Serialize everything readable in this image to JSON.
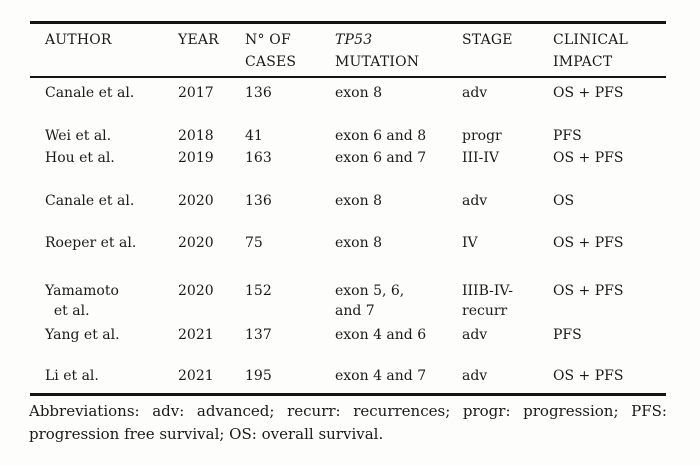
{
  "page": {
    "background_color": "#fdfdfc",
    "text_color": "#1a1a1a",
    "rule_color": "#141414"
  },
  "table": {
    "header": {
      "author": {
        "line1": "AUTHOR",
        "line2": ""
      },
      "year": {
        "line1": "YEAR",
        "line2": ""
      },
      "cases": {
        "line1": "N° OF",
        "line2": "CASES"
      },
      "mutation": {
        "line1": "TP53",
        "line2": "MUTATION"
      },
      "stage": {
        "line1": "STAGE",
        "line2": ""
      },
      "impact": {
        "line1": "CLINICAL",
        "line2": "IMPACT"
      }
    },
    "rows": [
      {
        "author": "Canale et al.",
        "year": "2017",
        "cases": "136",
        "mutation": "exon 8",
        "stage": "adv",
        "impact": "OS + PFS"
      },
      {
        "author": "Wei et al.",
        "year": "2018",
        "cases": "41",
        "mutation": "exon 6 and 8",
        "stage": "progr",
        "impact": "PFS"
      },
      {
        "author": "Hou et al.",
        "year": "2019",
        "cases": "163",
        "mutation": "exon 6 and 7",
        "stage": "III-IV",
        "impact": "OS + PFS"
      },
      {
        "author": "Canale et al.",
        "year": "2020",
        "cases": "136",
        "mutation": "exon 8",
        "stage": "adv",
        "impact": "OS"
      },
      {
        "author": "Roeper et al.",
        "year": "2020",
        "cases": "75",
        "mutation": "exon 8",
        "stage": "IV",
        "impact": "OS + PFS"
      },
      {
        "author": "Yamamoto\n  et al.",
        "year": "2020",
        "cases": "152",
        "mutation": "exon 5, 6,\nand 7",
        "stage": "IIIB-IV-\nrecurr",
        "impact": "OS + PFS"
      },
      {
        "author": "Yang et al.",
        "year": "2021",
        "cases": "137",
        "mutation": "exon 4 and 6",
        "stage": "adv",
        "impact": "PFS"
      },
      {
        "author": "Li et al.",
        "year": "2021",
        "cases": "195",
        "mutation": "exon 4 and 7",
        "stage": "adv",
        "impact": "OS + PFS"
      }
    ]
  },
  "footer": {
    "line1": "Abbreviations: adv: advanced; recurr: recurrences; progr: progression; PFS:",
    "line2": "progression free survival; OS: overall survival."
  }
}
